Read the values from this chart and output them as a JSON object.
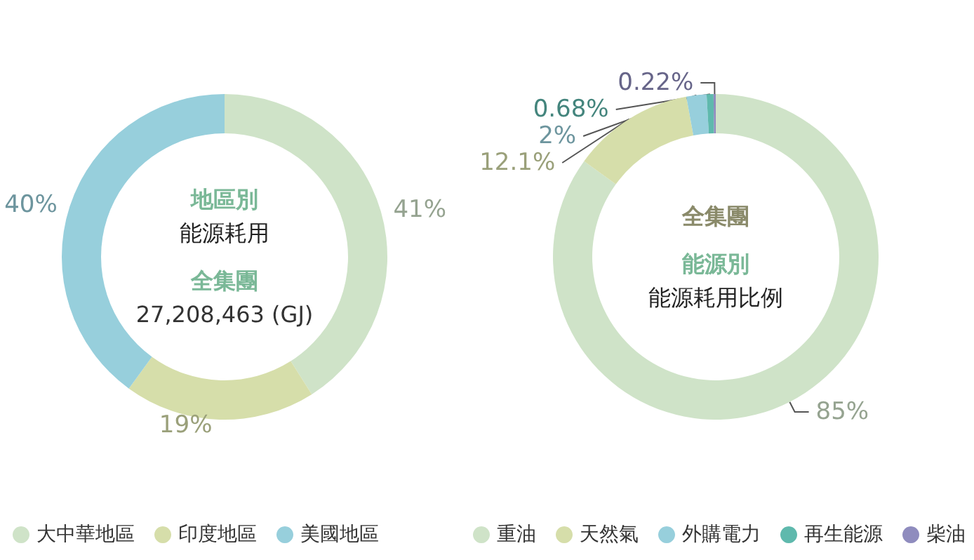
{
  "chart_data": [
    {
      "type": "donut",
      "title": "地區別",
      "subtitle": "能源耗用",
      "annotations": [
        "全集團",
        "27,208,463 (GJ)"
      ],
      "categories": [
        "大中華地區",
        "印度地區",
        "美國地區"
      ],
      "values": [
        41,
        19,
        40
      ],
      "value_labels": [
        "41%",
        "19%",
        "40%"
      ],
      "colors": [
        "#cfe3c8",
        "#d6deaa",
        "#97cfdc"
      ],
      "legend": "bottom"
    },
    {
      "type": "donut",
      "title": "能源別",
      "subtitle": "能源耗用比例",
      "annotations": [
        "全集團"
      ],
      "categories": [
        "重油",
        "天然氣",
        "外購電力",
        "再生能源",
        "柴油"
      ],
      "values": [
        85,
        12.1,
        2,
        0.68,
        0.22
      ],
      "value_labels": [
        "85%",
        "12.1%",
        "2%",
        "0.68%",
        "0.22%"
      ],
      "colors": [
        "#cfe3c8",
        "#d6deaa",
        "#97cfdc",
        "#5fb9ad",
        "#8f8cbe"
      ],
      "legend": "bottom"
    }
  ]
}
